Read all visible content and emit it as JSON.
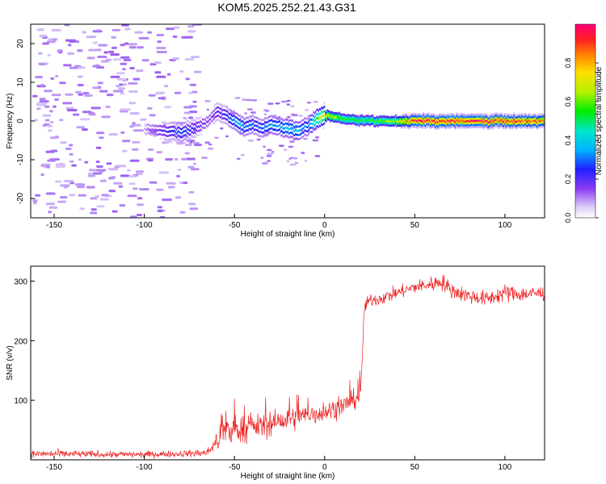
{
  "title": "KOM5.2025.252.21.43.G31",
  "chart_data": [
    {
      "type": "heatmap",
      "xlabel": "Height of straight line (km)",
      "ylabel": "Frequency (Hz)",
      "xlim": [
        -163,
        122
      ],
      "ylim": [
        -25,
        25
      ],
      "xticks": [
        -150,
        -100,
        -50,
        0,
        50,
        100
      ],
      "yticks": [
        -20,
        -10,
        0,
        10,
        20
      ],
      "colorbar": {
        "label": "Normalized spectral amplitude",
        "range": [
          0,
          1
        ],
        "ticks": [
          0.0,
          0.2,
          0.4,
          0.6,
          0.8
        ],
        "colormap": "white-lavender-purple-blue-cyan-green-yellow-orange-red-magenta"
      },
      "ridge": {
        "x": [
          -100,
          -90,
          -80,
          -70,
          -65,
          -60,
          -55,
          -50,
          -45,
          -40,
          -35,
          -30,
          -25,
          -20,
          -15,
          -10,
          -5,
          0,
          10,
          20,
          30,
          40,
          50,
          60,
          80,
          100,
          122
        ],
        "freq": [
          -2,
          -2.5,
          -3,
          -1.5,
          0,
          2.5,
          1.5,
          0,
          -1.5,
          -1,
          -2,
          -1,
          -1.5,
          -2,
          -2.5,
          -1.5,
          0.5,
          1.5,
          0.5,
          0.2,
          0,
          0,
          0,
          0,
          0,
          0,
          0
        ],
        "amplitude": [
          0.1,
          0.2,
          0.3,
          0.2,
          0.15,
          0.2,
          0.25,
          0.35,
          0.35,
          0.3,
          0.3,
          0.35,
          0.35,
          0.4,
          0.4,
          0.3,
          0.55,
          0.75,
          0.6,
          0.55,
          0.6,
          0.7,
          0.98,
          0.98,
          0.98,
          0.97,
          0.9
        ]
      },
      "noise_region_x": [
        -163,
        -72
      ]
    },
    {
      "type": "line",
      "xlabel": "Height of straight line (km)",
      "ylabel": "SNR (v/v)",
      "xlim": [
        -163,
        122
      ],
      "ylim": [
        0,
        325
      ],
      "xticks": [
        -150,
        -100,
        -50,
        0,
        50,
        100
      ],
      "yticks": [
        100,
        200,
        300
      ],
      "color": "#ee2222",
      "series_envelope": {
        "x": [
          -163,
          -150,
          -120,
          -100,
          -80,
          -65,
          -60,
          -55,
          -50,
          -40,
          -30,
          -20,
          -10,
          0,
          10,
          20,
          22,
          25,
          30,
          40,
          50,
          60,
          65,
          70,
          80,
          90,
          100,
          110,
          122
        ],
        "mean": [
          10,
          10,
          9,
          9,
          10,
          12,
          30,
          45,
          50,
          55,
          60,
          68,
          75,
          80,
          90,
          108,
          255,
          268,
          270,
          280,
          290,
          295,
          300,
          285,
          275,
          270,
          280,
          278,
          280
        ],
        "spread": [
          6,
          7,
          6,
          6,
          6,
          8,
          15,
          22,
          25,
          22,
          22,
          22,
          20,
          18,
          18,
          18,
          12,
          12,
          12,
          12,
          12,
          14,
          16,
          14,
          14,
          14,
          16,
          14,
          14
        ]
      }
    }
  ]
}
